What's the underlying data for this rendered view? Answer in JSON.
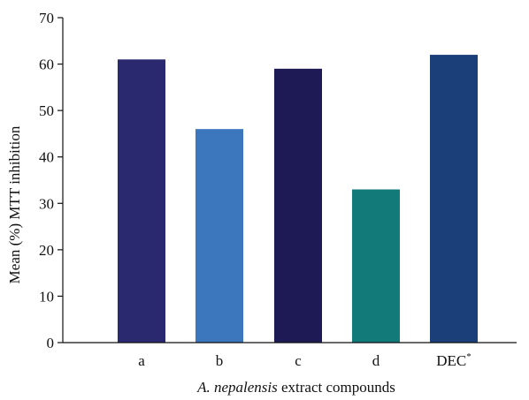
{
  "chart_data": {
    "type": "bar",
    "categories": [
      "a",
      "b",
      "c",
      "d",
      "DEC"
    ],
    "category_superscripts": [
      "",
      "",
      "",
      "",
      "*"
    ],
    "values": [
      61,
      46,
      59,
      33,
      62
    ],
    "colors": [
      "#2a286e",
      "#3c76bd",
      "#1d1a55",
      "#127b79",
      "#1b3f79"
    ],
    "xlabel_italic": "A. nepalensis",
    "xlabel_rest": " extract compounds",
    "ylabel": "Mean (%) MTT inhibition",
    "ylim": [
      0,
      70
    ],
    "yticks": [
      0,
      10,
      20,
      30,
      40,
      50,
      60,
      70
    ],
    "grid": false,
    "legend": "none"
  }
}
